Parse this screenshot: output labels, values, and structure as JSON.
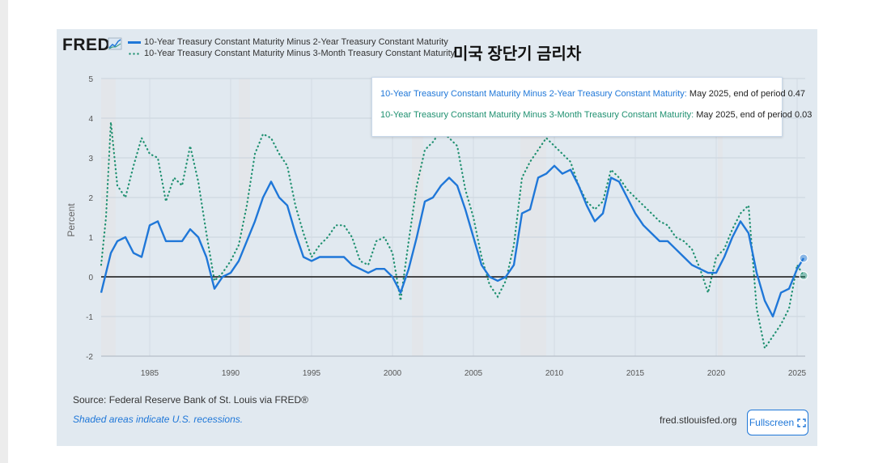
{
  "header": {
    "logo": "FRED",
    "overlay_title": "미국 장단기 금리차"
  },
  "legend": {
    "series1": "10-Year Treasury Constant Maturity Minus 2-Year Treasury Constant Maturity",
    "series2": "10-Year Treasury Constant Maturity Minus 3-Month Treasury Constant Maturity"
  },
  "tooltip": {
    "s1_name": "10-Year Treasury Constant Maturity Minus 2-Year Treasury Constant Maturity:",
    "s1_value": "May 2025, end of period 0.47",
    "s2_name": "10-Year Treasury Constant Maturity Minus 3-Month Treasury Constant Maturity:",
    "s2_value": "May 2025, end of period 0.03"
  },
  "footer": {
    "source": "Source: Federal Reserve Bank of St. Louis via FRED®",
    "note": "Shaded areas indicate U.S. recessions.",
    "site": "fred.stlouisfed.org",
    "fullscreen_label": "Fullscreen",
    "fullscreen_icon": "expand-icon"
  },
  "colors": {
    "series1": "#1f77d8",
    "series2": "#1f9070",
    "recession": "#e3e6ea",
    "panel": "#e1e9f0"
  },
  "chart_data": {
    "type": "line",
    "ylabel": "Percent",
    "xlim": [
      1982,
      2025.5
    ],
    "ylim": [
      -2,
      5
    ],
    "y_ticks": [
      "5",
      "4",
      "3",
      "2",
      "1",
      "0",
      "-1",
      "-2"
    ],
    "x_ticks": [
      "1985",
      "1990",
      "1995",
      "2000",
      "2005",
      "2010",
      "2015",
      "2020",
      "2025"
    ],
    "recessions": [
      [
        1982.0,
        1982.9
      ],
      [
        1990.5,
        1991.2
      ],
      [
        2001.2,
        2001.9
      ],
      [
        2007.9,
        2009.5
      ],
      [
        2020.1,
        2020.4
      ]
    ],
    "series": [
      {
        "name": "10-Year Treasury Constant Maturity Minus 2-Year Treasury Constant Maturity",
        "style": "solid",
        "x": [
          1982.0,
          1982.3,
          1982.6,
          1983.0,
          1983.5,
          1984.0,
          1984.5,
          1985.0,
          1985.5,
          1986.0,
          1986.5,
          1987.0,
          1987.5,
          1988.0,
          1988.5,
          1989.0,
          1989.5,
          1990.0,
          1990.5,
          1991.0,
          1991.5,
          1992.0,
          1992.5,
          1993.0,
          1993.5,
          1994.0,
          1994.5,
          1995.0,
          1995.5,
          1996.0,
          1996.5,
          1997.0,
          1997.5,
          1998.0,
          1998.5,
          1999.0,
          1999.5,
          2000.0,
          2000.5,
          2001.0,
          2001.5,
          2002.0,
          2002.5,
          2003.0,
          2003.5,
          2004.0,
          2004.5,
          2005.0,
          2005.5,
          2006.0,
          2006.5,
          2007.0,
          2007.5,
          2008.0,
          2008.5,
          2009.0,
          2009.5,
          2010.0,
          2010.5,
          2011.0,
          2011.5,
          2012.0,
          2012.5,
          2013.0,
          2013.5,
          2014.0,
          2014.5,
          2015.0,
          2015.5,
          2016.0,
          2016.5,
          2017.0,
          2017.5,
          2018.0,
          2018.5,
          2019.0,
          2019.5,
          2020.0,
          2020.5,
          2021.0,
          2021.5,
          2022.0,
          2022.5,
          2023.0,
          2023.5,
          2024.0,
          2024.5,
          2025.0,
          2025.4
        ],
        "values": [
          -0.4,
          0.1,
          0.6,
          0.9,
          1.0,
          0.6,
          0.5,
          1.3,
          1.4,
          0.9,
          0.9,
          0.9,
          1.2,
          1.0,
          0.5,
          -0.3,
          0.0,
          0.1,
          0.4,
          0.9,
          1.4,
          2.0,
          2.4,
          2.0,
          1.8,
          1.1,
          0.5,
          0.4,
          0.5,
          0.5,
          0.5,
          0.5,
          0.3,
          0.2,
          0.1,
          0.2,
          0.2,
          0.0,
          -0.4,
          0.2,
          1.0,
          1.9,
          2.0,
          2.3,
          2.5,
          2.3,
          1.7,
          1.0,
          0.3,
          0.0,
          -0.1,
          0.0,
          0.3,
          1.6,
          1.7,
          2.5,
          2.6,
          2.8,
          2.6,
          2.7,
          2.3,
          1.8,
          1.4,
          1.6,
          2.5,
          2.4,
          2.0,
          1.6,
          1.3,
          1.1,
          0.9,
          0.9,
          0.7,
          0.5,
          0.3,
          0.2,
          0.1,
          0.1,
          0.5,
          1.0,
          1.4,
          1.1,
          0.1,
          -0.6,
          -1.0,
          -0.4,
          -0.3,
          0.2,
          0.47
        ]
      },
      {
        "name": "10-Year Treasury Constant Maturity Minus 3-Month Treasury Constant Maturity",
        "style": "dotted",
        "x": [
          1982.0,
          1982.3,
          1982.6,
          1983.0,
          1983.5,
          1984.0,
          1984.5,
          1985.0,
          1985.5,
          1986.0,
          1986.5,
          1987.0,
          1987.5,
          1988.0,
          1988.5,
          1989.0,
          1989.5,
          1990.0,
          1990.5,
          1991.0,
          1991.5,
          1992.0,
          1992.5,
          1993.0,
          1993.5,
          1994.0,
          1994.5,
          1995.0,
          1995.5,
          1996.0,
          1996.5,
          1997.0,
          1997.5,
          1998.0,
          1998.5,
          1999.0,
          1999.5,
          2000.0,
          2000.5,
          2001.0,
          2001.5,
          2002.0,
          2002.5,
          2003.0,
          2003.5,
          2004.0,
          2004.5,
          2005.0,
          2005.5,
          2006.0,
          2006.5,
          2007.0,
          2007.5,
          2008.0,
          2008.5,
          2009.0,
          2009.5,
          2010.0,
          2010.5,
          2011.0,
          2011.5,
          2012.0,
          2012.5,
          2013.0,
          2013.5,
          2014.0,
          2014.5,
          2015.0,
          2015.5,
          2016.0,
          2016.5,
          2017.0,
          2017.5,
          2018.0,
          2018.5,
          2019.0,
          2019.5,
          2020.0,
          2020.5,
          2021.0,
          2021.5,
          2022.0,
          2022.5,
          2023.0,
          2023.5,
          2024.0,
          2024.5,
          2025.0,
          2025.4
        ],
        "values": [
          0.3,
          1.5,
          3.9,
          2.3,
          2.0,
          2.8,
          3.5,
          3.1,
          3.0,
          1.9,
          2.5,
          2.3,
          3.3,
          2.4,
          1.1,
          -0.1,
          0.1,
          0.4,
          0.8,
          1.8,
          3.1,
          3.6,
          3.5,
          3.1,
          2.8,
          1.8,
          1.1,
          0.5,
          0.8,
          1.0,
          1.3,
          1.3,
          1.0,
          0.4,
          0.3,
          0.9,
          1.0,
          0.6,
          -0.6,
          0.9,
          2.3,
          3.2,
          3.4,
          3.7,
          3.5,
          3.3,
          2.2,
          1.5,
          0.5,
          -0.2,
          -0.5,
          -0.1,
          0.8,
          2.5,
          2.9,
          3.2,
          3.5,
          3.3,
          3.1,
          2.9,
          2.3,
          1.9,
          1.7,
          1.9,
          2.7,
          2.5,
          2.2,
          2.0,
          1.8,
          1.6,
          1.4,
          1.3,
          1.0,
          0.9,
          0.7,
          0.2,
          -0.4,
          0.5,
          0.7,
          1.2,
          1.6,
          1.8,
          -0.8,
          -1.8,
          -1.5,
          -1.2,
          -0.8,
          0.3,
          0.03
        ]
      }
    ]
  }
}
